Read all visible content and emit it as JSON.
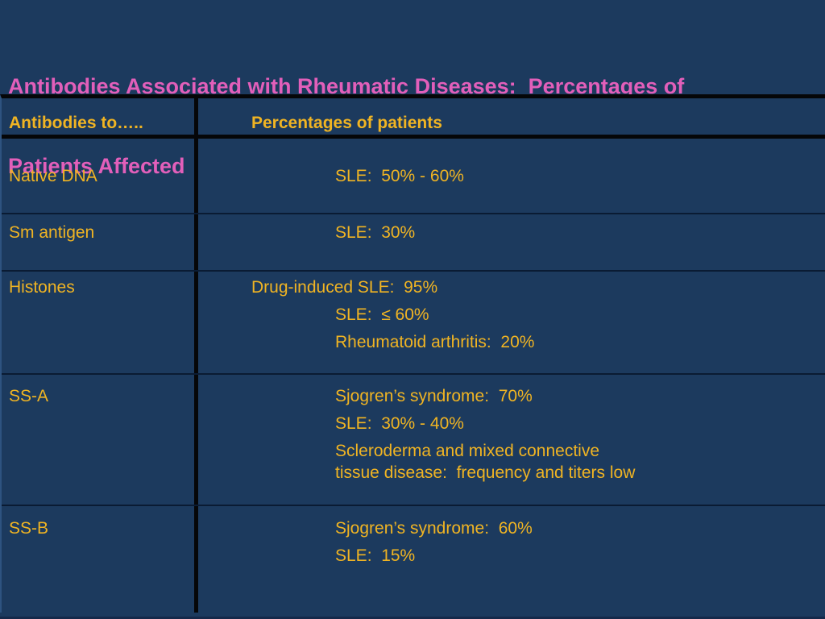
{
  "slide": {
    "background_color": "#1C3A5E",
    "title_color": "#E25FBA",
    "text_color": "#F0B423"
  },
  "title": {
    "line1": "Antibodies Associated with Rheumatic Diseases:  Percentages of",
    "line2": "Patients Affected"
  },
  "table": {
    "header": {
      "col1": "Antibodies to…..",
      "col2": "Percentages of patients"
    },
    "rows": [
      {
        "label": "Native DNA",
        "lines": [
          {
            "text": "SLE:  50% - 60%"
          }
        ]
      },
      {
        "label": "Sm antigen",
        "lines": [
          {
            "text": "SLE:  30%"
          }
        ]
      },
      {
        "label": "Histones",
        "lines": [
          {
            "text": "Drug-induced SLE:  95%"
          },
          {
            "text": "SLE:  ≤ 60%"
          },
          {
            "text": "Rheumatoid arthritis:  20%"
          }
        ]
      },
      {
        "label": "SS-A",
        "lines": [
          {
            "text": "Sjogren’s syndrome:  70%"
          },
          {
            "text": "SLE:  30% - 40%"
          },
          {
            "text": "Scleroderma and mixed connective"
          },
          {
            "text": "tissue disease:  frequency and titers low"
          }
        ]
      },
      {
        "label": "SS-B",
        "lines": [
          {
            "text": "Sjogren’s syndrome:  60%"
          },
          {
            "text": "SLE:  15%"
          }
        ]
      }
    ]
  }
}
